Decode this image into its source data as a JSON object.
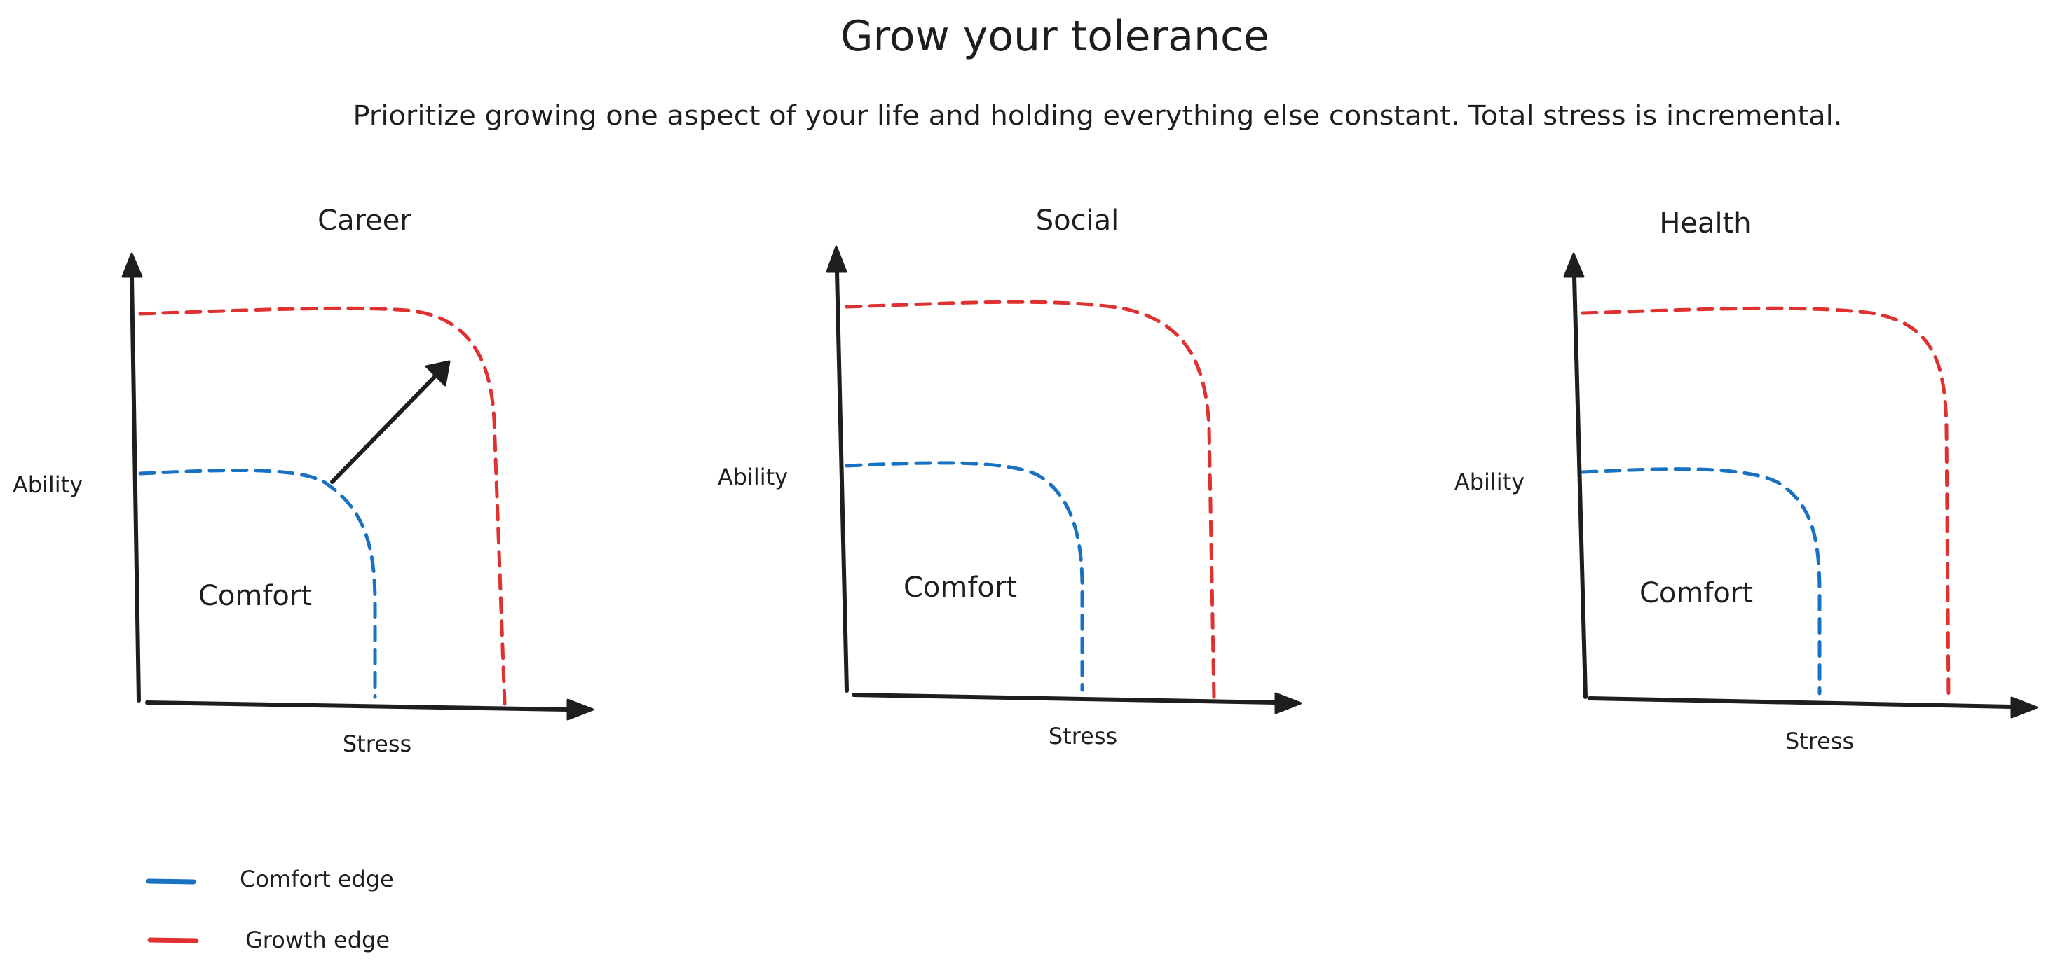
{
  "title": "Grow your tolerance",
  "subtitle": "Prioritize growing one aspect of your life and holding everything else constant. Total stress is incremental.",
  "panels": [
    {
      "title": "Career",
      "x_label": "Stress",
      "y_label": "Ability",
      "region_label": "Comfort",
      "growth_arrow": true
    },
    {
      "title": "Social",
      "x_label": "Stress",
      "y_label": "Ability",
      "region_label": "Comfort",
      "growth_arrow": false
    },
    {
      "title": "Health",
      "x_label": "Stress",
      "y_label": "Ability",
      "region_label": "Comfort",
      "growth_arrow": false
    }
  ],
  "legend": [
    {
      "label": "Comfort edge",
      "color": "#1971c2"
    },
    {
      "label": "Growth edge",
      "color": "#e03131"
    }
  ],
  "colors": {
    "comfort_edge": "#1971c2",
    "growth_edge": "#e03131",
    "ink": "#1e1e1e"
  }
}
